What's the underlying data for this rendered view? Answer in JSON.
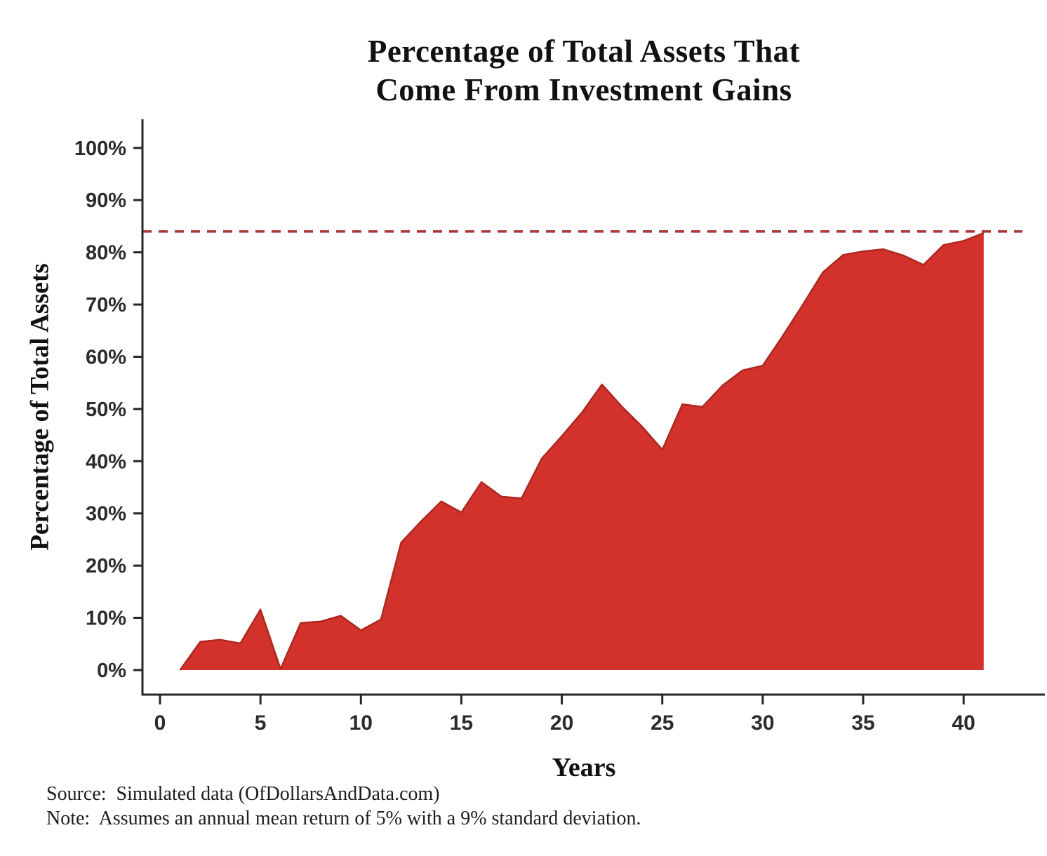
{
  "title": {
    "line1": "Percentage of Total Assets That",
    "line2": "Come From Investment Gains"
  },
  "y_axis": {
    "label": "Percentage of Total Assets",
    "ticks": [
      0,
      10,
      20,
      30,
      40,
      50,
      60,
      70,
      80,
      90,
      100
    ],
    "tick_suffix": "%"
  },
  "x_axis": {
    "label": "Years",
    "ticks": [
      0,
      5,
      10,
      15,
      20,
      25,
      30,
      35,
      40
    ]
  },
  "footer": {
    "source": "Source:  Simulated data (OfDollarsAndData.com)",
    "note": "Note:  Assumes an annual mean return of 5% with a 9% standard deviation."
  },
  "colors": {
    "area_fill": "#d2322b",
    "area_edge": "#ac2820",
    "reference_dash": "#a83a38",
    "axis": "#262626",
    "tick_text": "#2b2b2b"
  },
  "chart_data": {
    "type": "area",
    "title": "Percentage of Total Assets That Come From Investment Gains",
    "xlabel": "Years",
    "ylabel": "Percentage of Total Assets",
    "xlim": [
      0,
      43
    ],
    "ylim": [
      0,
      100
    ],
    "grid": false,
    "legend": false,
    "x": [
      1,
      2,
      3,
      4,
      5,
      6,
      7,
      8,
      9,
      10,
      11,
      12,
      13,
      14,
      15,
      16,
      17,
      18,
      19,
      20,
      21,
      22,
      23,
      24,
      25,
      26,
      27,
      28,
      29,
      30,
      31,
      32,
      33,
      34,
      35,
      36,
      37,
      38,
      39,
      40,
      41
    ],
    "values": [
      0,
      5.4,
      5.8,
      5.1,
      11.6,
      0.2,
      9.0,
      9.3,
      10.4,
      7.6,
      9.7,
      24.4,
      28.5,
      32.3,
      30.2,
      36.0,
      33.2,
      32.9,
      40.5,
      44.8,
      49.3,
      54.7,
      50.4,
      46.6,
      42.2,
      50.9,
      50.4,
      54.5,
      57.4,
      58.3,
      64.0,
      70.0,
      76.2,
      79.5,
      80.2,
      80.6,
      79.4,
      77.6,
      81.4,
      82.2,
      83.7
    ],
    "reference_line": {
      "value": 84,
      "style": "dashed",
      "orientation": "horizontal"
    }
  }
}
